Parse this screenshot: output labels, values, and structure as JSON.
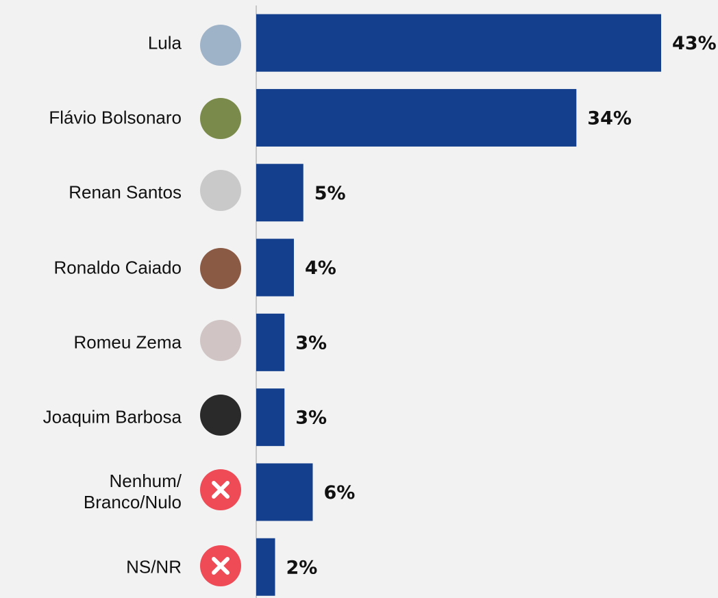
{
  "chart_data": {
    "type": "bar",
    "orientation": "horizontal",
    "categories": [
      "Lula",
      "Flávio Bolsonaro",
      "Renan Santos",
      "Ronaldo Caiado",
      "Romeu Zema",
      "Joaquim Barbosa",
      "Nenhum/\nBranco/Nulo",
      "NS/NR"
    ],
    "values": [
      43,
      34,
      5,
      4,
      3,
      3,
      6,
      2
    ],
    "value_labels": [
      "43%",
      "34%",
      "5%",
      "4%",
      "3%",
      "3%",
      "6%",
      "2%"
    ],
    "color": "#133f8c"
  }
}
